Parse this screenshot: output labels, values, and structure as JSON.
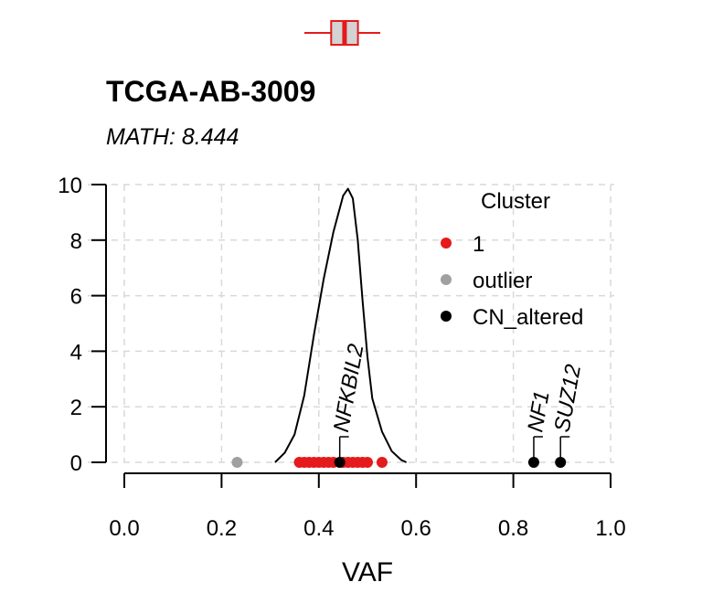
{
  "title": "TCGA-AB-3009",
  "subtitle": "MATH: 8.444",
  "chart_data": {
    "type": "scatter",
    "title": "TCGA-AB-3009",
    "subtitle": "MATH: 8.444",
    "xlabel": "VAF",
    "ylabel": "",
    "xlim": [
      0.0,
      1.0
    ],
    "ylim": [
      0,
      10
    ],
    "x_ticks": [
      "0.0",
      "0.2",
      "0.4",
      "0.6",
      "0.8",
      "1.0"
    ],
    "y_ticks": [
      "0",
      "2",
      "4",
      "6",
      "8",
      "10"
    ],
    "grid": true,
    "legend": {
      "title": "Cluster",
      "position": "top-right",
      "entries": [
        {
          "label": "1",
          "color": "#e41a1c"
        },
        {
          "label": "outlier",
          "color": "#a0a0a0"
        },
        {
          "label": "CN_altered",
          "color": "#000000"
        }
      ]
    },
    "series": [
      {
        "name": "1",
        "color": "#e41a1c",
        "x": [
          0.36,
          0.37,
          0.38,
          0.39,
          0.4,
          0.41,
          0.42,
          0.43,
          0.45,
          0.46,
          0.47,
          0.48,
          0.49,
          0.5,
          0.53
        ],
        "y": [
          0,
          0,
          0,
          0,
          0,
          0,
          0,
          0,
          0,
          0,
          0,
          0,
          0,
          0,
          0
        ]
      },
      {
        "name": "outlier",
        "color": "#a0a0a0",
        "x": [
          0.232
        ],
        "y": [
          0
        ]
      },
      {
        "name": "CN_altered",
        "color": "#000000",
        "x": [
          0.443,
          0.842,
          0.897
        ],
        "y": [
          0,
          0,
          0
        ]
      }
    ],
    "density": {
      "color": "#000000",
      "x": [
        0.31,
        0.33,
        0.35,
        0.37,
        0.39,
        0.41,
        0.43,
        0.45,
        0.46,
        0.47,
        0.48,
        0.49,
        0.5,
        0.51,
        0.53,
        0.55,
        0.57,
        0.58
      ],
      "y": [
        0.0,
        0.35,
        1.0,
        2.4,
        4.6,
        6.6,
        8.3,
        9.6,
        9.85,
        9.5,
        8.0,
        5.8,
        3.8,
        2.3,
        1.1,
        0.4,
        0.08,
        0.0
      ]
    },
    "annotations": [
      {
        "label": "NFKBIL2",
        "x": 0.443
      },
      {
        "label": "NF1",
        "x": 0.842
      },
      {
        "label": "SUZ12",
        "x": 0.897
      }
    ],
    "boxplot": {
      "color": "#e41a1c",
      "whisker_low": 0.36,
      "q1": 0.42,
      "median": 0.45,
      "q3": 0.48,
      "whisker_high": 0.53
    }
  }
}
